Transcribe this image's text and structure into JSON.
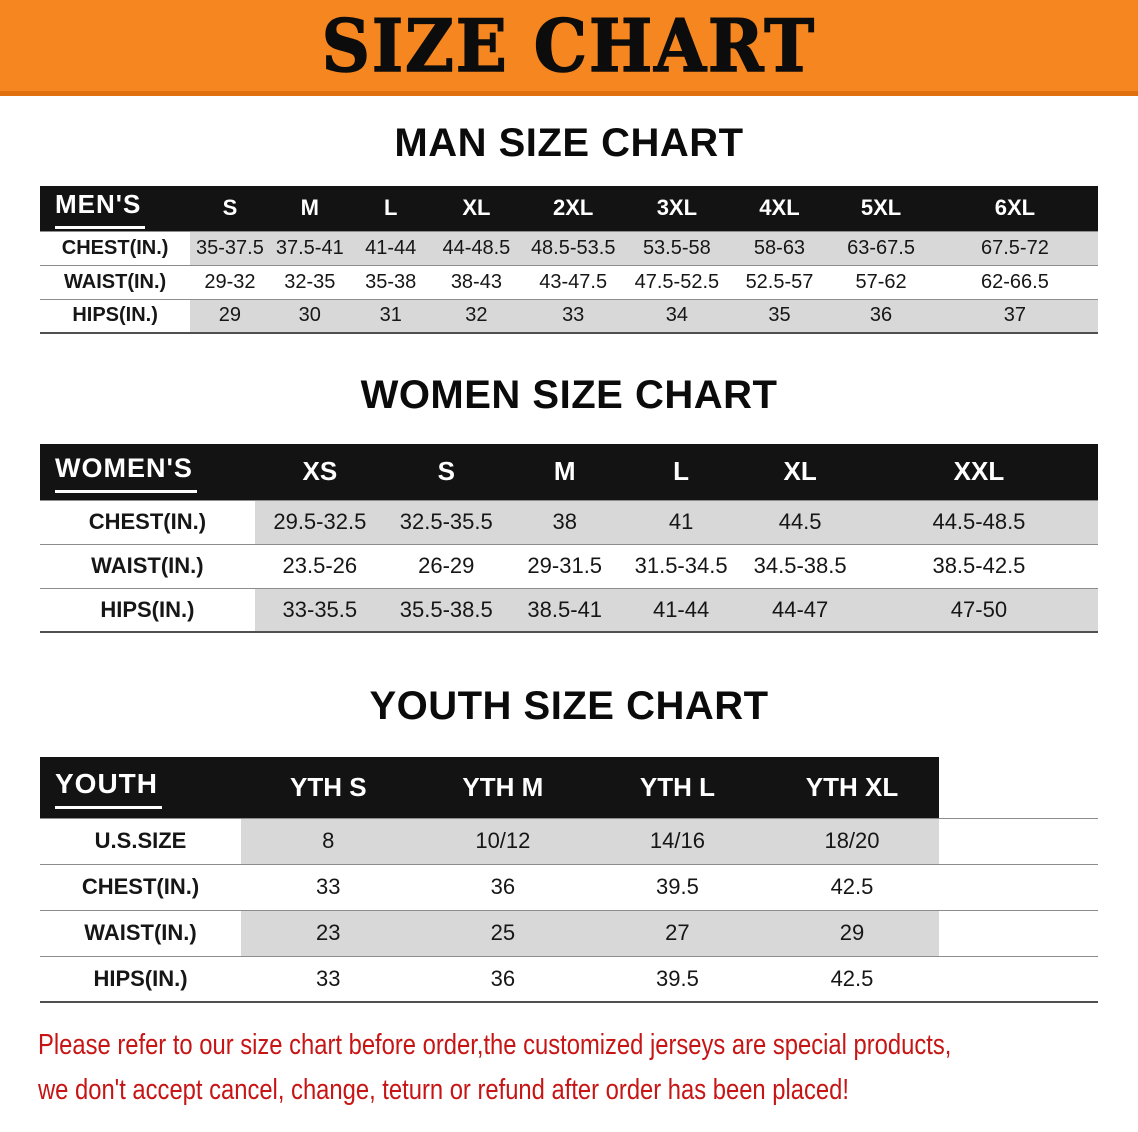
{
  "banner": {
    "title": "SIZE CHART",
    "bg_color": "#f6861f",
    "border_color": "#e0700e"
  },
  "men": {
    "heading": "MAN SIZE CHART",
    "table": {
      "header": [
        "MEN'S",
        "S",
        "M",
        "L",
        "XL",
        "2XL",
        "3XL",
        "4XL",
        "5XL",
        "6XL"
      ],
      "rows": [
        [
          "CHEST(IN.)",
          "35-37.5",
          "37.5-41",
          "41-44",
          "44-48.5",
          "48.5-53.5",
          "53.5-58",
          "58-63",
          "63-67.5",
          "67.5-72"
        ],
        [
          "WAIST(IN.)",
          "29-32",
          "32-35",
          "35-38",
          "38-43",
          "43-47.5",
          "47.5-52.5",
          "52.5-57",
          "57-62",
          "62-66.5"
        ],
        [
          "HIPS(IN.)",
          "29",
          "30",
          "31",
          "32",
          "33",
          "34",
          "35",
          "36",
          "37"
        ]
      ]
    }
  },
  "women": {
    "heading": "WOMEN SIZE CHART",
    "table": {
      "header": [
        "WOMEN'S",
        "XS",
        "S",
        "M",
        "L",
        "XL",
        "XXL"
      ],
      "rows": [
        [
          "CHEST(IN.)",
          "29.5-32.5",
          "32.5-35.5",
          "38",
          "41",
          "44.5",
          "44.5-48.5"
        ],
        [
          "WAIST(IN.)",
          "23.5-26",
          "26-29",
          "29-31.5",
          "31.5-34.5",
          "34.5-38.5",
          "38.5-42.5"
        ],
        [
          "HIPS(IN.)",
          "33-35.5",
          "35.5-38.5",
          "38.5-41",
          "41-44",
          "44-47",
          "47-50"
        ]
      ]
    }
  },
  "youth": {
    "heading": "YOUTH SIZE CHART",
    "table": {
      "header": [
        "YOUTH",
        "YTH S",
        "YTH M",
        "YTH L",
        "YTH XL"
      ],
      "rows": [
        [
          "U.S.SIZE",
          "8",
          "10/12",
          "14/16",
          "18/20"
        ],
        [
          "CHEST(IN.)",
          "33",
          "36",
          "39.5",
          "42.5"
        ],
        [
          "WAIST(IN.)",
          "23",
          "25",
          "27",
          "29"
        ],
        [
          "HIPS(IN.)",
          "33",
          "36",
          "39.5",
          "42.5"
        ]
      ]
    }
  },
  "disclaimer": {
    "color": "#c71515",
    "line1": "Please refer to our size chart before order,the customized jerseys are special products,",
    "line2": "we don't accept cancel, change, teturn or refund after order has been placed!"
  }
}
